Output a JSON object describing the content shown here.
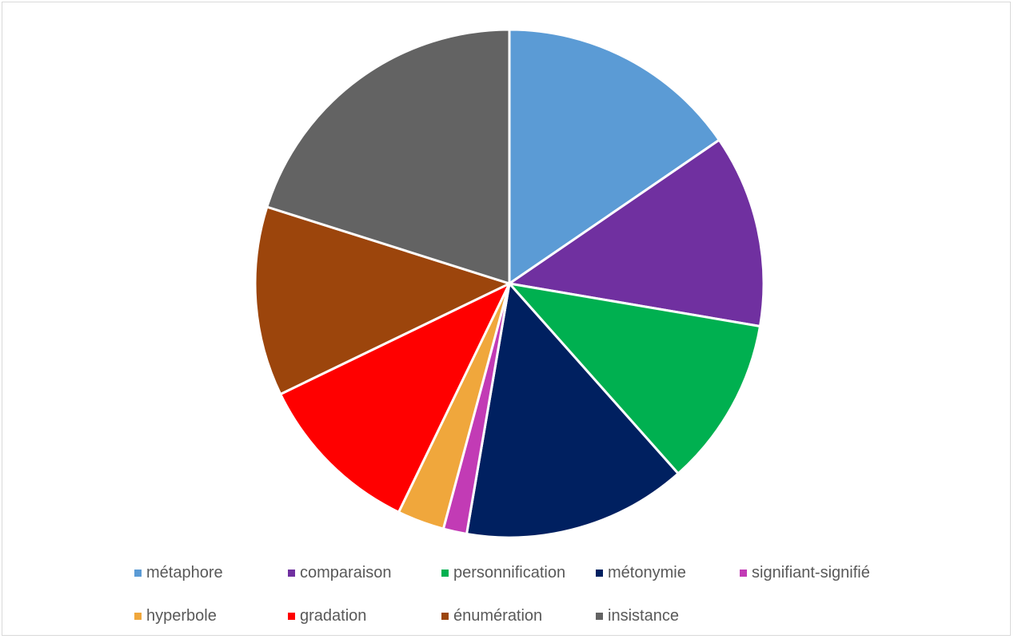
{
  "chart_data": {
    "type": "pie",
    "title": "",
    "legend_position": "bottom",
    "start_angle_deg": 0,
    "direction": "clockwise",
    "slices": [
      {
        "label": "métaphore",
        "value": 15.5,
        "color": "#5b9bd5"
      },
      {
        "label": "comparaison",
        "value": 12.3,
        "color": "#7030a0"
      },
      {
        "label": "personnification",
        "value": 10.8,
        "color": "#00b050"
      },
      {
        "label": "métonymie",
        "value": 14.3,
        "color": "#002060"
      },
      {
        "label": "signifiant-signifié",
        "value": 1.5,
        "color": "#c23bb5"
      },
      {
        "label": "hyperbole",
        "value": 3.0,
        "color": "#f0a73c"
      },
      {
        "label": "gradation",
        "value": 10.7,
        "color": "#ff0000"
      },
      {
        "label": "énumération",
        "value": 12.1,
        "color": "#9c450c"
      },
      {
        "label": "insistance",
        "value": 20.2,
        "color": "#636363"
      }
    ]
  }
}
